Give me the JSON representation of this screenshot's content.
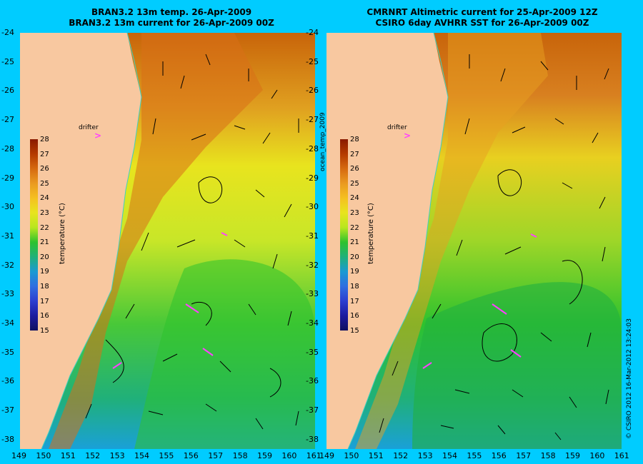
{
  "left_panel": {
    "title_line1": "BRAN3.2 13m temp. 26-Apr-2009",
    "title_line2": "BRAN3.2 13m current for 26-Apr-2009 00Z",
    "drifter_label": "drifter"
  },
  "right_panel": {
    "title_line1": "CMRNRT Altimetric current for 25-Apr-2009 12Z",
    "title_line2": "CSIRO 6day AVHRR SST for 26-Apr-2009 00Z",
    "drifter_label": "drifter"
  },
  "colorbar": {
    "label": "temperature (°C)",
    "ticks": [
      "28",
      "27",
      "26",
      "25",
      "24",
      "23",
      "22",
      "21",
      "20",
      "19",
      "18",
      "17",
      "16",
      "15"
    ],
    "colors": [
      "#8a1a00",
      "#b43a00",
      "#d66a10",
      "#ea9a20",
      "#f5c020",
      "#e8e41e",
      "#b8e61e",
      "#2ec22e",
      "#20b07a",
      "#1a9ad2",
      "#2f6ee0",
      "#2c3ed0",
      "#1c1a9e",
      "#101060"
    ]
  },
  "y_axis_ticks": [
    "-24",
    "-25",
    "-26",
    "-27",
    "-28",
    "-29",
    "-30",
    "-31",
    "-32",
    "-33",
    "-34",
    "-35",
    "-36",
    "-37",
    "-38"
  ],
  "x_axis_ticks": [
    "149",
    "150",
    "151",
    "152",
    "153",
    "154",
    "155",
    "156",
    "157",
    "158",
    "159",
    "160",
    "161"
  ],
  "middle_label": "ocean_temp_2009",
  "credit": "© CSIRO 2012   16-Mar-2012 13:24:03",
  "colors": {
    "background": "#00ccff",
    "land": "#f8c8a0",
    "drifter": "#ff40ff"
  }
}
